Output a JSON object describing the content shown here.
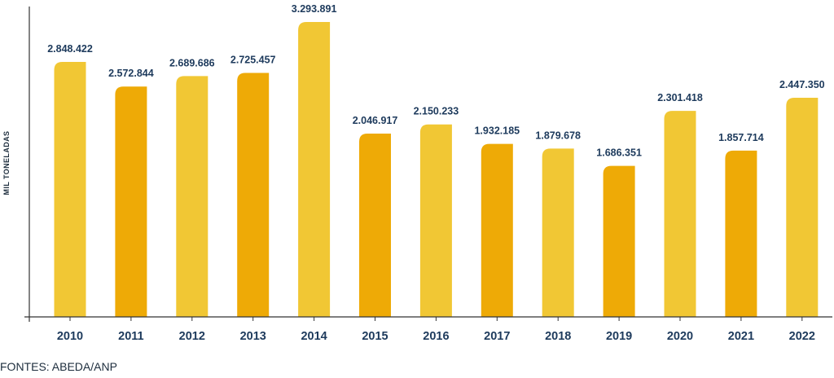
{
  "chart_data": {
    "type": "bar",
    "categories": [
      "2010",
      "2011",
      "2012",
      "2013",
      "2014",
      "2015",
      "2016",
      "2017",
      "2018",
      "2019",
      "2020",
      "2021",
      "2022"
    ],
    "values": [
      2848422,
      2572844,
      2689686,
      2725457,
      3293891,
      2046917,
      2150233,
      1932185,
      1879678,
      1686351,
      2301418,
      1857714,
      2447350
    ],
    "value_labels": [
      "2.848.422",
      "2.572.844",
      "2.689.686",
      "2.725.457",
      "3.293.891",
      "2.046.917",
      "2.150.233",
      "1.932.185",
      "1.879.678",
      "1.686.351",
      "2.301.418",
      "1.857.714",
      "2.447.350"
    ],
    "ylabel": "MIL TONELADAS",
    "ylim": [
      0,
      3293891
    ],
    "grid": false,
    "colors": {
      "light": "#F1C734",
      "dark": "#EEAA06",
      "axis": "#333333",
      "label": "#1d3a5c"
    },
    "bar_color_pattern": [
      "light",
      "dark",
      "light",
      "dark",
      "light",
      "dark",
      "light",
      "dark",
      "light",
      "dark",
      "light",
      "dark",
      "light"
    ]
  },
  "source_text": "FONTES: ABEDA/ANP"
}
